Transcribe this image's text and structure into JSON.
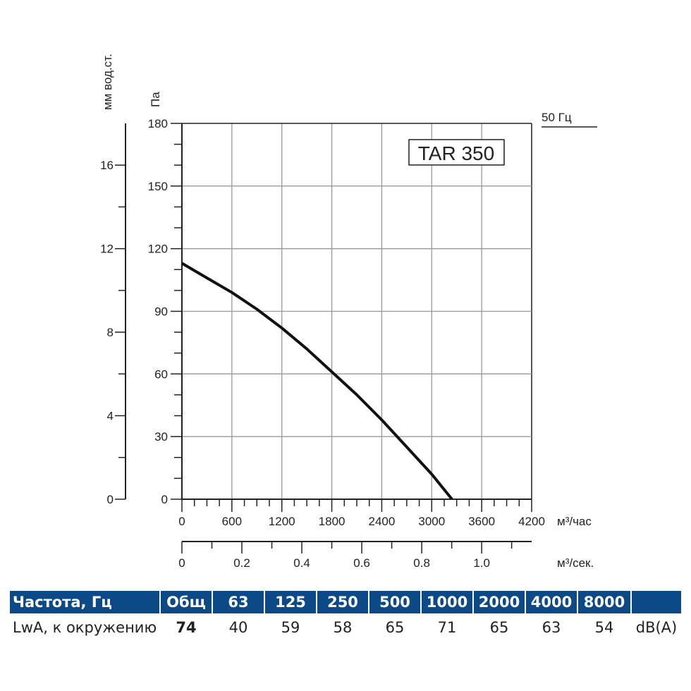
{
  "chart_data": {
    "type": "line",
    "model_label": "TAR 350",
    "frequency_label": "50 Гц",
    "xlabel": "м³/час",
    "xlabel_secondary": "м³/сек.",
    "ylabel": "Па",
    "ylabel_secondary": "мм вод.ст.",
    "xlim": [
      0,
      4200
    ],
    "ylim": [
      0,
      180
    ],
    "ylim_secondary": [
      0,
      18
    ],
    "xticks": [
      "0",
      "600",
      "1200",
      "1800",
      "2400",
      "3000",
      "3600",
      "4200"
    ],
    "xticks_secondary": [
      "0",
      "0.2",
      "0.4",
      "0.6",
      "0.8",
      "1.0"
    ],
    "yticks": [
      "0",
      "30",
      "60",
      "90",
      "120",
      "150",
      "180"
    ],
    "yticks_secondary": [
      "0",
      "4",
      "8",
      "12",
      "16"
    ],
    "grid": true,
    "series": [
      {
        "x": [
          0,
          300,
          600,
          900,
          1200,
          1500,
          1800,
          2100,
          2400,
          2700,
          3000,
          3243
        ],
        "y": [
          113,
          106,
          99,
          91,
          82,
          72,
          61,
          50,
          38,
          25,
          12,
          0
        ]
      }
    ]
  },
  "table": {
    "header": [
      "Частота, Гц",
      "Общ",
      "63",
      "125",
      "250",
      "500",
      "1000",
      "2000",
      "4000",
      "8000",
      ""
    ],
    "row": [
      "LwA, к окружению",
      "74",
      "40",
      "59",
      "58",
      "65",
      "71",
      "65",
      "63",
      "54",
      "dB(A)"
    ]
  }
}
